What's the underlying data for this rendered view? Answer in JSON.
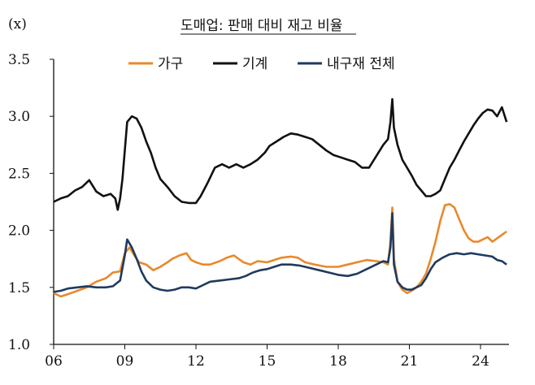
{
  "chart_data": {
    "type": "line",
    "title": "도매업: 판매 대비 재고 비율",
    "unit_label": "(x)",
    "ylim": [
      1.0,
      3.5
    ],
    "yticks": [
      "1.0",
      "1.5",
      "2.0",
      "2.5",
      "3.0",
      "3.5"
    ],
    "xlim": [
      2006.0,
      2025.2
    ],
    "xticks": [
      {
        "value": 2006,
        "label": "06"
      },
      {
        "value": 2009,
        "label": "09"
      },
      {
        "value": 2012,
        "label": "12"
      },
      {
        "value": 2015,
        "label": "15"
      },
      {
        "value": 2018,
        "label": "18"
      },
      {
        "value": 2021,
        "label": "21"
      },
      {
        "value": 2024,
        "label": "24"
      }
    ],
    "grid": false,
    "legend_position": "top",
    "series": [
      {
        "name": "가구",
        "color": "#E8892B",
        "points": [
          [
            2006.0,
            1.45
          ],
          [
            2006.3,
            1.42
          ],
          [
            2006.6,
            1.44
          ],
          [
            2007.0,
            1.47
          ],
          [
            2007.4,
            1.5
          ],
          [
            2007.8,
            1.55
          ],
          [
            2008.2,
            1.58
          ],
          [
            2008.5,
            1.63
          ],
          [
            2008.8,
            1.64
          ],
          [
            2009.0,
            1.8
          ],
          [
            2009.2,
            1.85
          ],
          [
            2009.4,
            1.78
          ],
          [
            2009.6,
            1.72
          ],
          [
            2009.9,
            1.7
          ],
          [
            2010.2,
            1.65
          ],
          [
            2010.5,
            1.68
          ],
          [
            2010.8,
            1.72
          ],
          [
            2011.0,
            1.75
          ],
          [
            2011.3,
            1.78
          ],
          [
            2011.6,
            1.8
          ],
          [
            2011.8,
            1.74
          ],
          [
            2012.0,
            1.72
          ],
          [
            2012.3,
            1.7
          ],
          [
            2012.6,
            1.7
          ],
          [
            2013.0,
            1.73
          ],
          [
            2013.3,
            1.76
          ],
          [
            2013.6,
            1.78
          ],
          [
            2014.0,
            1.72
          ],
          [
            2014.3,
            1.7
          ],
          [
            2014.6,
            1.73
          ],
          [
            2015.0,
            1.72
          ],
          [
            2015.3,
            1.74
          ],
          [
            2015.6,
            1.76
          ],
          [
            2016.0,
            1.77
          ],
          [
            2016.3,
            1.76
          ],
          [
            2016.6,
            1.72
          ],
          [
            2017.0,
            1.7
          ],
          [
            2017.5,
            1.68
          ],
          [
            2018.0,
            1.68
          ],
          [
            2018.4,
            1.7
          ],
          [
            2018.8,
            1.72
          ],
          [
            2019.2,
            1.74
          ],
          [
            2019.6,
            1.73
          ],
          [
            2019.9,
            1.72
          ],
          [
            2020.1,
            1.7
          ],
          [
            2020.2,
            1.9
          ],
          [
            2020.28,
            2.2
          ],
          [
            2020.35,
            1.75
          ],
          [
            2020.5,
            1.55
          ],
          [
            2020.7,
            1.48
          ],
          [
            2020.9,
            1.45
          ],
          [
            2021.1,
            1.47
          ],
          [
            2021.3,
            1.5
          ],
          [
            2021.5,
            1.55
          ],
          [
            2021.7,
            1.62
          ],
          [
            2021.9,
            1.75
          ],
          [
            2022.1,
            1.9
          ],
          [
            2022.3,
            2.08
          ],
          [
            2022.5,
            2.22
          ],
          [
            2022.7,
            2.23
          ],
          [
            2022.9,
            2.2
          ],
          [
            2023.1,
            2.1
          ],
          [
            2023.3,
            2.0
          ],
          [
            2023.5,
            1.93
          ],
          [
            2023.7,
            1.9
          ],
          [
            2023.9,
            1.9
          ],
          [
            2024.1,
            1.92
          ],
          [
            2024.3,
            1.94
          ],
          [
            2024.5,
            1.9
          ],
          [
            2024.7,
            1.93
          ],
          [
            2024.9,
            1.96
          ],
          [
            2025.1,
            1.99
          ]
        ]
      },
      {
        "name": "기계",
        "color": "#111111",
        "points": [
          [
            2006.0,
            2.25
          ],
          [
            2006.3,
            2.28
          ],
          [
            2006.6,
            2.3
          ],
          [
            2006.9,
            2.35
          ],
          [
            2007.2,
            2.38
          ],
          [
            2007.5,
            2.44
          ],
          [
            2007.8,
            2.34
          ],
          [
            2008.1,
            2.3
          ],
          [
            2008.4,
            2.32
          ],
          [
            2008.6,
            2.28
          ],
          [
            2008.7,
            2.18
          ],
          [
            2008.8,
            2.28
          ],
          [
            2008.9,
            2.45
          ],
          [
            2009.0,
            2.7
          ],
          [
            2009.1,
            2.95
          ],
          [
            2009.3,
            3.0
          ],
          [
            2009.5,
            2.98
          ],
          [
            2009.7,
            2.9
          ],
          [
            2009.9,
            2.78
          ],
          [
            2010.1,
            2.68
          ],
          [
            2010.3,
            2.55
          ],
          [
            2010.5,
            2.45
          ],
          [
            2010.8,
            2.38
          ],
          [
            2011.1,
            2.3
          ],
          [
            2011.4,
            2.25
          ],
          [
            2011.7,
            2.24
          ],
          [
            2012.0,
            2.24
          ],
          [
            2012.2,
            2.3
          ],
          [
            2012.5,
            2.42
          ],
          [
            2012.8,
            2.55
          ],
          [
            2013.1,
            2.58
          ],
          [
            2013.4,
            2.55
          ],
          [
            2013.7,
            2.58
          ],
          [
            2014.0,
            2.55
          ],
          [
            2014.3,
            2.58
          ],
          [
            2014.6,
            2.62
          ],
          [
            2014.9,
            2.68
          ],
          [
            2015.1,
            2.74
          ],
          [
            2015.4,
            2.78
          ],
          [
            2015.7,
            2.82
          ],
          [
            2016.0,
            2.85
          ],
          [
            2016.3,
            2.84
          ],
          [
            2016.6,
            2.82
          ],
          [
            2016.9,
            2.8
          ],
          [
            2017.2,
            2.75
          ],
          [
            2017.5,
            2.7
          ],
          [
            2017.8,
            2.66
          ],
          [
            2018.1,
            2.64
          ],
          [
            2018.4,
            2.62
          ],
          [
            2018.7,
            2.6
          ],
          [
            2019.0,
            2.55
          ],
          [
            2019.3,
            2.55
          ],
          [
            2019.6,
            2.65
          ],
          [
            2019.9,
            2.75
          ],
          [
            2020.1,
            2.8
          ],
          [
            2020.2,
            2.95
          ],
          [
            2020.28,
            3.15
          ],
          [
            2020.35,
            2.9
          ],
          [
            2020.5,
            2.75
          ],
          [
            2020.7,
            2.62
          ],
          [
            2020.9,
            2.55
          ],
          [
            2021.1,
            2.48
          ],
          [
            2021.3,
            2.4
          ],
          [
            2021.5,
            2.35
          ],
          [
            2021.7,
            2.3
          ],
          [
            2021.9,
            2.3
          ],
          [
            2022.1,
            2.32
          ],
          [
            2022.3,
            2.35
          ],
          [
            2022.5,
            2.45
          ],
          [
            2022.7,
            2.55
          ],
          [
            2022.9,
            2.62
          ],
          [
            2023.1,
            2.7
          ],
          [
            2023.3,
            2.78
          ],
          [
            2023.5,
            2.85
          ],
          [
            2023.7,
            2.92
          ],
          [
            2023.9,
            2.98
          ],
          [
            2024.1,
            3.03
          ],
          [
            2024.3,
            3.06
          ],
          [
            2024.5,
            3.05
          ],
          [
            2024.7,
            3.0
          ],
          [
            2024.9,
            3.08
          ],
          [
            2025.1,
            2.95
          ]
        ]
      },
      {
        "name": "내구재 전체",
        "color": "#1F3A5F",
        "points": [
          [
            2006.0,
            1.46
          ],
          [
            2006.3,
            1.47
          ],
          [
            2006.6,
            1.49
          ],
          [
            2007.0,
            1.5
          ],
          [
            2007.4,
            1.51
          ],
          [
            2007.8,
            1.5
          ],
          [
            2008.2,
            1.5
          ],
          [
            2008.5,
            1.51
          ],
          [
            2008.8,
            1.56
          ],
          [
            2009.0,
            1.78
          ],
          [
            2009.1,
            1.92
          ],
          [
            2009.3,
            1.85
          ],
          [
            2009.5,
            1.75
          ],
          [
            2009.7,
            1.64
          ],
          [
            2009.9,
            1.56
          ],
          [
            2010.2,
            1.5
          ],
          [
            2010.5,
            1.48
          ],
          [
            2010.8,
            1.47
          ],
          [
            2011.1,
            1.48
          ],
          [
            2011.4,
            1.5
          ],
          [
            2011.7,
            1.5
          ],
          [
            2012.0,
            1.49
          ],
          [
            2012.3,
            1.52
          ],
          [
            2012.6,
            1.55
          ],
          [
            2013.0,
            1.56
          ],
          [
            2013.4,
            1.57
          ],
          [
            2013.8,
            1.58
          ],
          [
            2014.1,
            1.6
          ],
          [
            2014.4,
            1.63
          ],
          [
            2014.7,
            1.65
          ],
          [
            2015.0,
            1.66
          ],
          [
            2015.3,
            1.68
          ],
          [
            2015.6,
            1.7
          ],
          [
            2016.0,
            1.7
          ],
          [
            2016.4,
            1.69
          ],
          [
            2016.8,
            1.67
          ],
          [
            2017.2,
            1.65
          ],
          [
            2017.6,
            1.63
          ],
          [
            2018.0,
            1.61
          ],
          [
            2018.4,
            1.6
          ],
          [
            2018.8,
            1.62
          ],
          [
            2019.2,
            1.66
          ],
          [
            2019.6,
            1.7
          ],
          [
            2019.9,
            1.73
          ],
          [
            2020.1,
            1.72
          ],
          [
            2020.2,
            1.85
          ],
          [
            2020.28,
            2.15
          ],
          [
            2020.35,
            1.7
          ],
          [
            2020.5,
            1.55
          ],
          [
            2020.7,
            1.5
          ],
          [
            2020.9,
            1.48
          ],
          [
            2021.1,
            1.48
          ],
          [
            2021.3,
            1.5
          ],
          [
            2021.5,
            1.52
          ],
          [
            2021.7,
            1.58
          ],
          [
            2021.9,
            1.66
          ],
          [
            2022.1,
            1.72
          ],
          [
            2022.4,
            1.76
          ],
          [
            2022.7,
            1.79
          ],
          [
            2023.0,
            1.8
          ],
          [
            2023.3,
            1.79
          ],
          [
            2023.6,
            1.8
          ],
          [
            2023.9,
            1.79
          ],
          [
            2024.2,
            1.78
          ],
          [
            2024.5,
            1.77
          ],
          [
            2024.7,
            1.74
          ],
          [
            2024.9,
            1.73
          ],
          [
            2025.1,
            1.7
          ]
        ]
      }
    ]
  }
}
